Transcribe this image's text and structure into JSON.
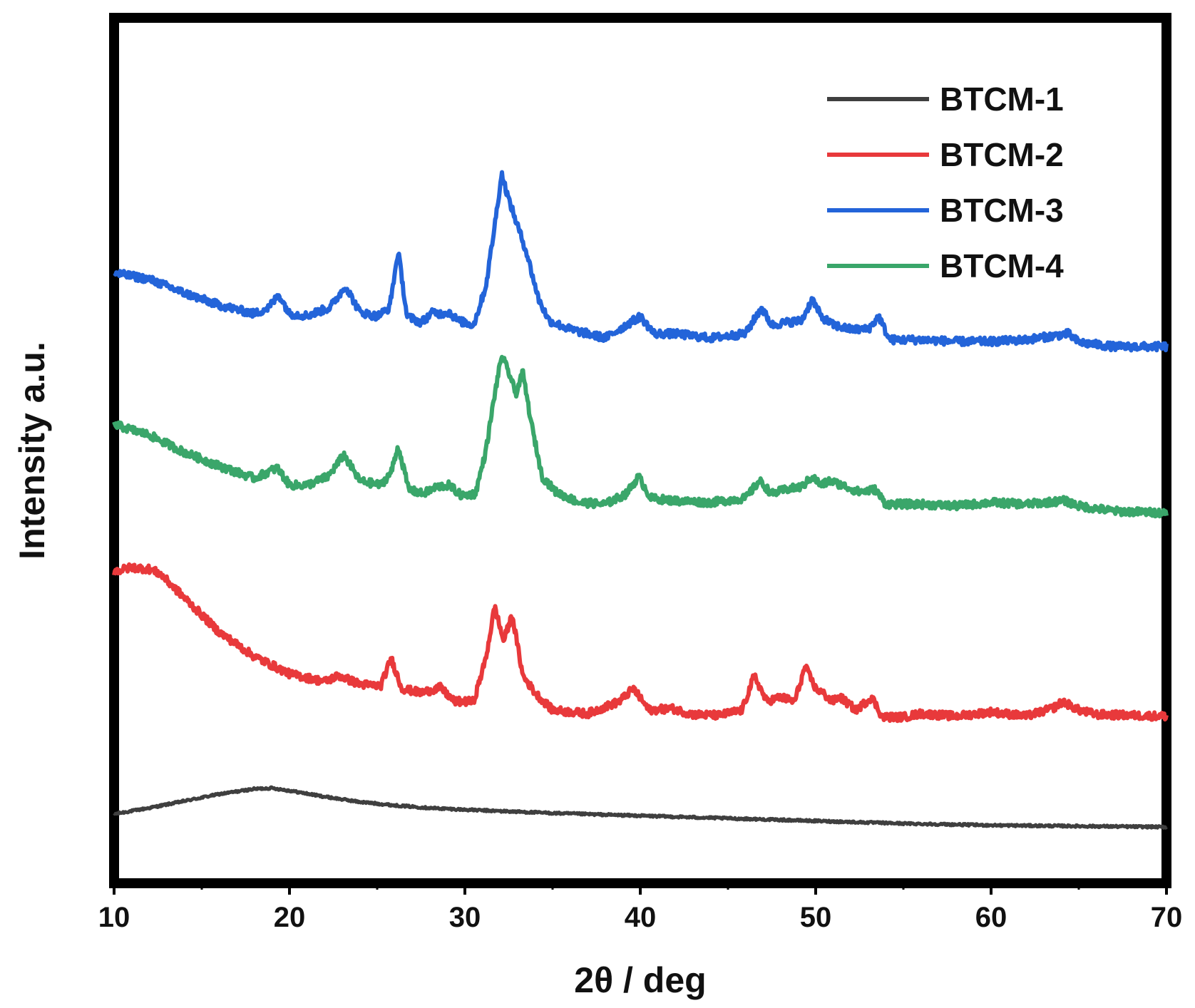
{
  "chart_data": {
    "type": "line",
    "title": "",
    "xlabel": "2θ / deg",
    "ylabel": "Intensity a.u.",
    "xlim": [
      10,
      70
    ],
    "ylim": [
      0,
      100
    ],
    "xticks": [
      10,
      20,
      30,
      40,
      50,
      60,
      70
    ],
    "yticks_visible": false,
    "grid": false,
    "legend_position": "top-right",
    "series": [
      {
        "name": "BTCM-1",
        "color": "#3f3f3f",
        "x": [
          10,
          12,
          14,
          16,
          18,
          19,
          20,
          22,
          24,
          26,
          28,
          30,
          35,
          40,
          45,
          50,
          55,
          60,
          65,
          70
        ],
        "y": [
          8.0,
          8.7,
          9.5,
          10.3,
          10.9,
          11.0,
          10.7,
          10.0,
          9.4,
          9.0,
          8.7,
          8.5,
          8.1,
          7.8,
          7.5,
          7.2,
          6.9,
          6.7,
          6.6,
          6.5
        ]
      },
      {
        "name": "BTCM-2",
        "color": "#e8393b",
        "x": [
          10,
          11,
          12,
          12.6,
          14,
          16,
          18,
          20,
          22,
          22.8,
          24,
          25.2,
          25.8,
          26.4,
          27.5,
          28.6,
          29.4,
          30.5,
          31.2,
          31.7,
          32.2,
          32.7,
          33.3,
          34.0,
          35,
          37,
          38.8,
          39.6,
          40.5,
          41.8,
          43,
          44.5,
          45.8,
          46.5,
          47.2,
          48.0,
          48.8,
          49.4,
          50.0,
          50.4,
          50.9,
          51.4,
          52.3,
          53.2,
          53.8,
          55,
          56,
          58,
          60,
          62,
          63.5,
          64.1,
          65,
          66,
          70
        ],
        "y": [
          36.0,
          36.5,
          36.3,
          35.8,
          33.0,
          29.0,
          26.2,
          24.2,
          23.3,
          24.0,
          23.0,
          22.8,
          26.0,
          22.5,
          22.0,
          22.6,
          21.0,
          21.0,
          26.0,
          32.0,
          28.0,
          31.0,
          24.0,
          22.0,
          20.0,
          19.6,
          21.0,
          22.5,
          20.0,
          20.2,
          19.5,
          19.4,
          20.0,
          24.0,
          21.0,
          21.5,
          21.0,
          25.0,
          22.5,
          22.0,
          21.0,
          21.5,
          20.0,
          21.5,
          19.2,
          19.2,
          19.6,
          19.3,
          19.8,
          19.3,
          20.2,
          21.0,
          20.0,
          19.5,
          19.3
        ]
      },
      {
        "name": "BTCM-3",
        "color": "#2364d9",
        "x": [
          10,
          12,
          14,
          16,
          18,
          18.8,
          19.4,
          20,
          21,
          22.3,
          23.2,
          24,
          25,
          25.7,
          26.2,
          26.7,
          27.5,
          28.2,
          28.6,
          29.1,
          29.6,
          30.5,
          31.2,
          31.7,
          32.1,
          32.5,
          33.0,
          33.5,
          34.2,
          34.8,
          36,
          38,
          39.2,
          40,
          40.8,
          42,
          44,
          46,
          46.9,
          47.5,
          48.3,
          49.2,
          49.8,
          50.3,
          51,
          52,
          53,
          53.6,
          54.2,
          56,
          58,
          60,
          62,
          64.4,
          65,
          67,
          70
        ],
        "y": [
          70.5,
          69.8,
          68.2,
          66.8,
          65.8,
          66.5,
          68.0,
          65.8,
          65.6,
          66.5,
          69.0,
          66.0,
          65.5,
          66.5,
          73.0,
          65.5,
          64.8,
          66.0,
          65.8,
          66.0,
          65.0,
          64.5,
          69.0,
          76.0,
          82.0,
          79.0,
          76.0,
          73.0,
          67.5,
          65.0,
          64.0,
          63.0,
          64.5,
          65.5,
          63.5,
          63.5,
          63.0,
          63.5,
          66.5,
          64.5,
          64.8,
          65.0,
          67.5,
          65.5,
          64.5,
          64.0,
          64.0,
          65.5,
          62.8,
          62.8,
          62.6,
          62.6,
          62.8,
          63.5,
          62.5,
          62.0,
          62.0
        ]
      },
      {
        "name": "BTCM-4",
        "color": "#3aa66a",
        "x": [
          10,
          12,
          14,
          16,
          18,
          19.3,
          20,
          21,
          22.2,
          23.1,
          24,
          25.2,
          25.8,
          26.2,
          26.8,
          27.6,
          28.4,
          29.1,
          29.8,
          30.6,
          31.2,
          31.7,
          32.1,
          32.6,
          32.9,
          33.3,
          33.8,
          34.4,
          35.2,
          36.5,
          38,
          39.2,
          39.9,
          40.6,
          42,
          44,
          46,
          46.8,
          47.5,
          48.3,
          49.2,
          49.8,
          50.3,
          50.8,
          51.5,
          52.5,
          53.4,
          54,
          56,
          58,
          60,
          62,
          64.2,
          65,
          67,
          70
        ],
        "y": [
          53.0,
          51.8,
          49.8,
          48.2,
          46.8,
          48.0,
          46.0,
          46.0,
          47.0,
          49.5,
          46.5,
          46.0,
          47.5,
          50.5,
          45.5,
          45.0,
          45.8,
          46.0,
          44.8,
          45.0,
          50.0,
          56.5,
          61.0,
          58.5,
          56.5,
          59.0,
          53.0,
          47.0,
          45.2,
          44.0,
          43.8,
          45.0,
          47.0,
          44.5,
          44.2,
          44.0,
          44.5,
          46.5,
          45.0,
          45.5,
          45.8,
          47.0,
          46.0,
          46.5,
          46.0,
          45.2,
          45.5,
          43.8,
          43.8,
          43.6,
          44.0,
          43.8,
          44.2,
          43.6,
          43.0,
          42.8
        ]
      }
    ]
  }
}
